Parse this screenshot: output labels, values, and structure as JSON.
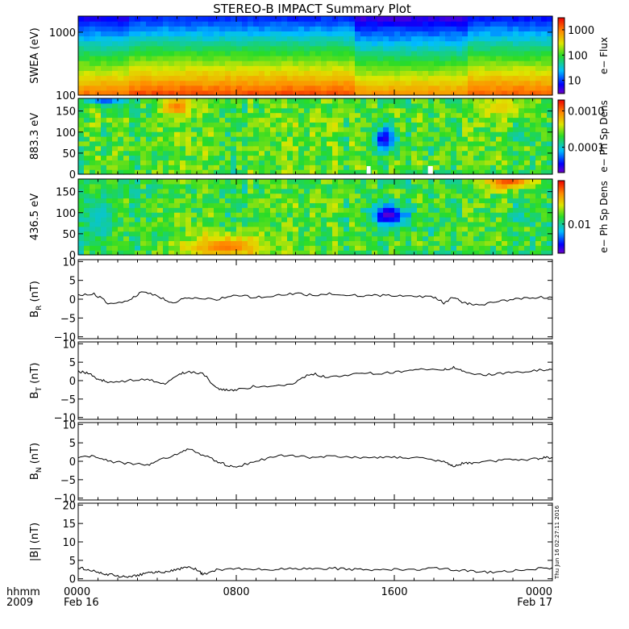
{
  "title": "STEREO-B IMPACT Summary Plot",
  "time_axis": {
    "ticks": [
      {
        "hours": 0,
        "label": "0000",
        "date": "Feb 16"
      },
      {
        "hours": 8,
        "label": "0800",
        "date": ""
      },
      {
        "hours": 16,
        "label": "1600",
        "date": ""
      },
      {
        "hours": 24,
        "label": "0000",
        "date": "Feb 17"
      }
    ],
    "corner_top": "hhmm",
    "corner_bottom": "2009"
  },
  "timestamp": "Thu Jun 16 02:27:11 2016",
  "chart_data": [
    {
      "id": "swea",
      "type": "heatmap",
      "ylabel": "SWEA (eV)",
      "y_scale": "log",
      "ylim": [
        100,
        1800
      ],
      "yticks": [
        {
          "v": 100,
          "label": "100"
        },
        {
          "v": 1000,
          "label": "1000"
        }
      ],
      "colorbar": {
        "label": "e− Flux",
        "scale": "log",
        "range": [
          3,
          3000
        ],
        "ticks": [
          {
            "v": 10,
            "label": "10"
          },
          {
            "v": 100,
            "label": "100"
          },
          {
            "v": 1000,
            "label": "1000"
          }
        ]
      },
      "segments": [
        {
          "start_h": 0,
          "end_h": 2.5,
          "level": 0.42
        },
        {
          "start_h": 2.5,
          "end_h": 14.0,
          "level": 0.52
        },
        {
          "start_h": 14.0,
          "end_h": 19.8,
          "level": 0.34
        },
        {
          "start_h": 19.8,
          "end_h": 24.0,
          "level": 0.48
        }
      ]
    },
    {
      "id": "pad883",
      "type": "heatmap",
      "ylabel": "883.3 eV",
      "ylim": [
        0,
        180
      ],
      "yticks": [
        {
          "v": 0,
          "label": "0"
        },
        {
          "v": 50,
          "label": "50"
        },
        {
          "v": 100,
          "label": "100"
        },
        {
          "v": 150,
          "label": "150"
        }
      ],
      "colorbar": {
        "label": "e− Ph Sp Dens",
        "scale": "log",
        "range": [
          2e-05,
          0.002
        ],
        "ticks": [
          {
            "v": 0.0001,
            "label": "0.0001"
          },
          {
            "v": 0.001,
            "label": "0.0010"
          }
        ]
      },
      "base_level": 0.52,
      "features": [
        {
          "t_h": 15.5,
          "pa": 85,
          "dt": 0.6,
          "dpa": 28,
          "level": 0.08
        },
        {
          "t_h": 1.4,
          "pa": 175,
          "dt": 0.9,
          "dpa": 12,
          "level": 0.2
        },
        {
          "t_h": 5.0,
          "pa": 160,
          "dt": 0.8,
          "dpa": 20,
          "level": 0.85
        },
        {
          "t_h": 21.5,
          "pa": 160,
          "dt": 1.2,
          "dpa": 25,
          "level": 0.7
        }
      ],
      "gaps": [
        {
          "start_h": 14.6,
          "end_h": 14.8
        },
        {
          "start_h": 17.7,
          "end_h": 17.95
        }
      ]
    },
    {
      "id": "pad436",
      "type": "heatmap",
      "ylabel": "436.5 eV",
      "ylim": [
        0,
        180
      ],
      "yticks": [
        {
          "v": 0,
          "label": "0"
        },
        {
          "v": 50,
          "label": "50"
        },
        {
          "v": 100,
          "label": "100"
        },
        {
          "v": 150,
          "label": "150"
        }
      ],
      "colorbar": {
        "label": "e− Ph Sp Dens",
        "scale": "log",
        "range": [
          0.003,
          0.06
        ],
        "ticks": [
          {
            "v": 0.01,
            "label": "0.01"
          }
        ]
      },
      "base_level": 0.5,
      "features": [
        {
          "t_h": 15.7,
          "pa": 95,
          "dt": 0.9,
          "dpa": 25,
          "level": 0.02
        },
        {
          "t_h": 7.5,
          "pa": 20,
          "dt": 2.0,
          "dpa": 28,
          "level": 0.85
        },
        {
          "t_h": 21.8,
          "pa": 175,
          "dt": 1.2,
          "dpa": 18,
          "level": 0.9
        },
        {
          "t_h": 1.0,
          "pa": 90,
          "dt": 0.8,
          "dpa": 60,
          "level": 0.35
        }
      ]
    },
    {
      "id": "br",
      "type": "line",
      "ylabel": "B",
      "ylabel_sub": "R",
      "ylabel_unit": " (nT)",
      "ylim": [
        -10.5,
        10.5
      ],
      "yticks": [
        {
          "v": -10,
          "label": "−10"
        },
        {
          "v": -5,
          "label": "−5"
        },
        {
          "v": 0,
          "label": "0"
        },
        {
          "v": 5,
          "label": "5"
        },
        {
          "v": 10,
          "label": "10"
        }
      ],
      "x": [
        0,
        0.8,
        1.5,
        2.5,
        3.2,
        4.0,
        4.7,
        5.3,
        6.0,
        7.0,
        8.0,
        9.0,
        10.0,
        11.0,
        12.0,
        13.0,
        14.0,
        15.0,
        16.0,
        17.0,
        18.0,
        18.5,
        19.0,
        19.5,
        20.0,
        21.0,
        22.0,
        23.0,
        24.0
      ],
      "y": [
        1.0,
        1.5,
        -1.0,
        -0.5,
        2.0,
        1.0,
        -1.0,
        0.0,
        0.5,
        0.0,
        1.0,
        0.5,
        1.0,
        1.5,
        1.0,
        1.5,
        1.0,
        1.0,
        1.0,
        1.0,
        0.5,
        -1.0,
        0.5,
        -1.0,
        -1.5,
        -1.0,
        0.0,
        0.5,
        0.5
      ]
    },
    {
      "id": "bt",
      "type": "line",
      "ylabel": "B",
      "ylabel_sub": "T",
      "ylabel_unit": " (nT)",
      "ylim": [
        -10.5,
        10.5
      ],
      "yticks": [
        {
          "v": -10,
          "label": "−10"
        },
        {
          "v": -5,
          "label": "−5"
        },
        {
          "v": 0,
          "label": "0"
        },
        {
          "v": 5,
          "label": "5"
        },
        {
          "v": 10,
          "label": "10"
        }
      ],
      "x": [
        0,
        0.5,
        1.0,
        1.5,
        2.5,
        3.5,
        4.3,
        5.0,
        5.5,
        6.3,
        7.0,
        7.5,
        8.0,
        9.0,
        10.0,
        11.0,
        11.8,
        12.5,
        13.5,
        14.5,
        15.5,
        16.5,
        17.5,
        18.5,
        19.0,
        19.5,
        20.5,
        21.5,
        22.5,
        23.5,
        24.0
      ],
      "y": [
        2.5,
        2.0,
        0.5,
        -0.5,
        0.0,
        0.5,
        -1.0,
        1.5,
        2.5,
        2.0,
        -2.0,
        -2.5,
        -2.5,
        -1.5,
        -1.5,
        -0.5,
        2.0,
        1.0,
        1.5,
        2.0,
        2.0,
        2.5,
        3.0,
        3.0,
        3.5,
        2.5,
        1.5,
        2.0,
        2.5,
        3.0,
        3.0
      ]
    },
    {
      "id": "bn",
      "type": "line",
      "ylabel": "B",
      "ylabel_sub": "N",
      "ylabel_unit": " (nT)",
      "ylim": [
        -10.5,
        10.5
      ],
      "yticks": [
        {
          "v": -10,
          "label": "−10"
        },
        {
          "v": -5,
          "label": "−5"
        },
        {
          "v": 0,
          "label": "0"
        },
        {
          "v": 5,
          "label": "5"
        },
        {
          "v": 10,
          "label": "10"
        }
      ],
      "x": [
        0,
        0.8,
        1.5,
        2.5,
        3.5,
        4.2,
        5.0,
        5.6,
        6.2,
        7.0,
        7.5,
        8.0,
        9.0,
        10.0,
        11.0,
        12.0,
        13.0,
        14.0,
        15.0,
        16.0,
        17.0,
        18.0,
        18.7,
        19.0,
        19.5,
        20.0,
        21.0,
        22.0,
        23.0,
        23.5,
        24.0
      ],
      "y": [
        1.0,
        1.5,
        0.0,
        -0.5,
        -1.0,
        0.5,
        2.0,
        3.5,
        2.0,
        0.0,
        -1.0,
        -1.5,
        0.0,
        1.5,
        1.5,
        1.0,
        1.5,
        1.0,
        1.0,
        1.0,
        1.0,
        0.5,
        -0.5,
        -1.5,
        -0.5,
        -0.5,
        0.0,
        0.5,
        0.5,
        1.0,
        1.0
      ]
    },
    {
      "id": "bmag",
      "type": "line",
      "ylabel": "|B| (nT)",
      "ylabel_sub": "",
      "ylabel_unit": "",
      "ylim": [
        -0.5,
        20.5
      ],
      "yticks": [
        {
          "v": 0,
          "label": "0"
        },
        {
          "v": 5,
          "label": "5"
        },
        {
          "v": 10,
          "label": "10"
        },
        {
          "v": 15,
          "label": "15"
        },
        {
          "v": 20,
          "label": "20"
        }
      ],
      "x": [
        0,
        0.5,
        1.0,
        1.5,
        2.0,
        2.5,
        3.0,
        3.5,
        4.0,
        4.5,
        5.0,
        5.5,
        6.0,
        6.3,
        7.0,
        8.0,
        9.0,
        10.0,
        11.0,
        12.0,
        13.0,
        14.0,
        15.0,
        16.0,
        17.0,
        18.0,
        19.0,
        20.0,
        21.0,
        22.0,
        23.0,
        24.0
      ],
      "y": [
        3.0,
        2.5,
        1.8,
        1.2,
        0.8,
        0.3,
        1.0,
        1.5,
        1.8,
        2.0,
        2.5,
        3.3,
        2.5,
        1.2,
        2.5,
        2.8,
        2.5,
        2.5,
        2.8,
        2.5,
        2.8,
        2.5,
        2.5,
        2.5,
        2.5,
        2.8,
        2.5,
        2.0,
        1.8,
        2.2,
        2.6,
        3.0
      ]
    }
  ]
}
